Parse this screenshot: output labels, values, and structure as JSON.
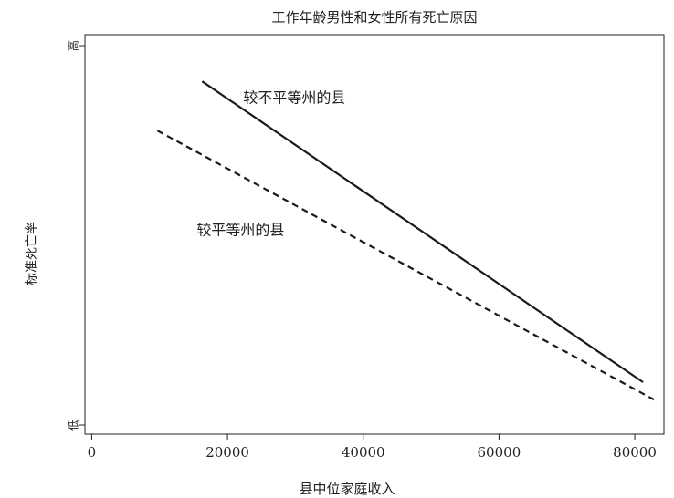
{
  "chart_data": {
    "type": "line",
    "title": "工作年龄男性和女性所有死亡原因",
    "xlabel": "县中位家庭收入",
    "ylabel": "标准死亡率",
    "xlim": [
      -1000,
      84300
    ],
    "xticks": [
      0,
      20000,
      40000,
      60000,
      80000
    ],
    "ylim": [
      -2.4,
      102.9
    ],
    "yticks": [
      {
        "value": 0,
        "label": "低"
      },
      {
        "value": 100,
        "label": "高"
      }
    ],
    "series": [
      {
        "name": "较不平等州的县",
        "color": "#1a1a1a",
        "dash": "solid",
        "x": [
          16269,
          81210
        ],
        "values": [
          90.6,
          11.3
        ]
      },
      {
        "name": "较平等州的县",
        "color": "#1a1a1a",
        "dash": "dashed",
        "x": [
          9681,
          82824
        ],
        "values": [
          77.6,
          6.7
        ]
      }
    ]
  }
}
